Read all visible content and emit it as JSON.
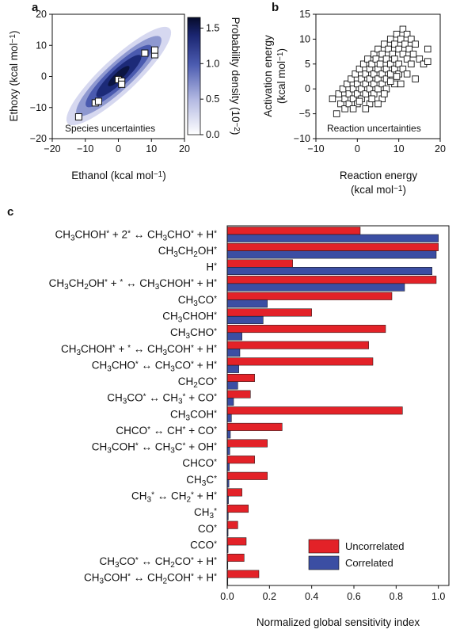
{
  "panel_a": {
    "letter": "a",
    "xlabel": "Ethanol (kcal mol−1)",
    "ylabel": "Ethoxy (kcal mol−1)",
    "inset_label": "Species uncertainties",
    "colorbar_label": "Probability density (10−2)"
  },
  "panel_b": {
    "letter": "b",
    "xlabel_line1": "Reaction energy",
    "xlabel_line2": "(kcal mol−1)",
    "ylabel_line1": "Activation energy",
    "ylabel_line2": "(kcal mol−1)",
    "inset_label": "Reaction uncertainties"
  },
  "panel_c": {
    "letter": "c",
    "xlabel": "Normalized global sensitivity index"
  },
  "colors": {
    "uncorrelated": "#e32228",
    "correlated": "#3b4ea3",
    "density_dark": "#0b1542",
    "density_light": "#d6d8f0"
  },
  "chart_data": [
    {
      "type": "heatmap",
      "panel": "a",
      "xlim": [
        -20,
        20
      ],
      "ylim": [
        -20,
        20
      ],
      "xticks": [
        "−20",
        "−10",
        "0",
        "10",
        "20"
      ],
      "yticks": [
        "−20",
        "−10",
        "0",
        "10",
        "20"
      ],
      "colorbar": {
        "range": [
          0,
          1.65
        ],
        "ticks": [
          "0.0",
          "0.5",
          "1.0",
          "1.5"
        ]
      },
      "points": [
        {
          "x": -12,
          "y": -13
        },
        {
          "x": -7,
          "y": -8.5
        },
        {
          "x": -6,
          "y": -8
        },
        {
          "x": 0,
          "y": -1
        },
        {
          "x": 1,
          "y": -1.5
        },
        {
          "x": 1,
          "y": -2.5
        },
        {
          "x": 8,
          "y": 7.5
        },
        {
          "x": 11,
          "y": 7
        },
        {
          "x": 11,
          "y": 8.5
        }
      ]
    },
    {
      "type": "scatter",
      "panel": "b",
      "xlim": [
        -10,
        20
      ],
      "ylim": [
        -10,
        15
      ],
      "xticks": [
        "−10",
        "0",
        "10",
        "20"
      ],
      "yticks": [
        "−10",
        "−5",
        "0",
        "5",
        "10",
        "15"
      ],
      "points": [
        [
          -6,
          -2
        ],
        [
          -5,
          -5
        ],
        [
          -4.5,
          -1
        ],
        [
          -4,
          -3
        ],
        [
          -3.5,
          0
        ],
        [
          -3,
          -2
        ],
        [
          -3,
          -4
        ],
        [
          -2.5,
          1
        ],
        [
          -2,
          -1
        ],
        [
          -2,
          -3
        ],
        [
          -1.5,
          2
        ],
        [
          -1,
          0
        ],
        [
          -1,
          -2
        ],
        [
          -0.5,
          3
        ],
        [
          0,
          1
        ],
        [
          0,
          -1
        ],
        [
          0,
          -3
        ],
        [
          0.5,
          4
        ],
        [
          1,
          2
        ],
        [
          1,
          0
        ],
        [
          1,
          -2
        ],
        [
          1.5,
          5
        ],
        [
          2,
          3
        ],
        [
          2,
          1
        ],
        [
          2,
          -1
        ],
        [
          2.5,
          6
        ],
        [
          3,
          4
        ],
        [
          3,
          2
        ],
        [
          3,
          0
        ],
        [
          3,
          -3
        ],
        [
          3.5,
          5
        ],
        [
          4,
          7
        ],
        [
          4,
          3
        ],
        [
          4,
          1
        ],
        [
          4,
          -1
        ],
        [
          4.5,
          6
        ],
        [
          5,
          8
        ],
        [
          5,
          4
        ],
        [
          5,
          2
        ],
        [
          5,
          0
        ],
        [
          5.5,
          5
        ],
        [
          6,
          7
        ],
        [
          6,
          3
        ],
        [
          6,
          1
        ],
        [
          6,
          -2
        ],
        [
          6.5,
          9
        ],
        [
          7,
          6
        ],
        [
          7,
          4
        ],
        [
          7,
          2
        ],
        [
          7,
          0
        ],
        [
          7.5,
          8
        ],
        [
          8,
          5
        ],
        [
          8,
          3
        ],
        [
          8,
          10
        ],
        [
          8.5,
          7
        ],
        [
          9,
          9
        ],
        [
          9,
          6
        ],
        [
          9,
          4
        ],
        [
          9,
          1
        ],
        [
          9.5,
          11
        ],
        [
          10,
          8
        ],
        [
          10,
          5
        ],
        [
          10,
          3
        ],
        [
          10.5,
          10
        ],
        [
          11,
          7
        ],
        [
          11,
          12
        ],
        [
          11,
          4
        ],
        [
          11.5,
          9
        ],
        [
          12,
          11
        ],
        [
          12,
          6
        ],
        [
          12,
          3
        ],
        [
          12.5,
          8
        ],
        [
          13,
          10
        ],
        [
          13,
          5
        ],
        [
          13.5,
          7
        ],
        [
          14,
          9
        ],
        [
          14,
          2
        ],
        [
          15,
          6
        ],
        [
          16,
          5
        ],
        [
          17,
          8
        ],
        [
          17,
          5.5
        ],
        [
          -1,
          -4
        ],
        [
          0.5,
          -2.5
        ],
        [
          2,
          -4
        ],
        [
          3.5,
          -2
        ],
        [
          5,
          -3
        ],
        [
          6.5,
          -1
        ],
        [
          8,
          1.5
        ],
        [
          9.5,
          2.5
        ],
        [
          10.5,
          1
        ]
      ]
    },
    {
      "type": "bar",
      "panel": "c",
      "orientation": "horizontal",
      "xlim": [
        0,
        1.05
      ],
      "xticks": [
        "0.0",
        "0.2",
        "0.4",
        "0.6",
        "0.8",
        "1.0"
      ],
      "categories": [
        "CH3CHOH* + 2* ↔ CH3CHO* + H*",
        "CH3CH2OH*",
        "H*",
        "CH3CH2OH* + * ↔ CH3CHOH* + H*",
        "CH3CO*",
        "CH3CHOH*",
        "CH3CHO*",
        "CH3CHOH* + * ↔ CH3COH* + H*",
        "CH3CHO* ↔ CH3CO* + H*",
        "CH2CO*",
        "CH3CO* ↔ CH3* + CO*",
        "CH3COH*",
        "CHCO* ↔ CH* + CO*",
        "CH3COH* ↔ CH3C* + OH*",
        "CHCO*",
        "CH3C*",
        "CH3* ↔ CH2* + H*",
        "CH3*",
        "CO*",
        "CCO*",
        "CH3CO* ↔ CH2CO* + H*",
        "CH3COH* ↔ CH2COH* + H*"
      ],
      "series": [
        {
          "name": "Uncorrelated",
          "values": [
            0.63,
            1.0,
            0.31,
            0.99,
            0.78,
            0.4,
            0.75,
            0.67,
            0.69,
            0.13,
            0.11,
            0.83,
            0.26,
            0.19,
            0.13,
            0.19,
            0.07,
            0.1,
            0.05,
            0.09,
            0.08,
            0.15
          ]
        },
        {
          "name": "Correlated",
          "values": [
            1.0,
            0.99,
            0.97,
            0.84,
            0.19,
            0.17,
            0.07,
            0.06,
            0.055,
            0.05,
            0.03,
            0.02,
            0.015,
            0.012,
            0.01,
            0.008,
            0.006,
            0.005,
            0.004,
            0.004,
            0.003,
            0.003
          ]
        }
      ],
      "legend": "bottom-right"
    }
  ]
}
